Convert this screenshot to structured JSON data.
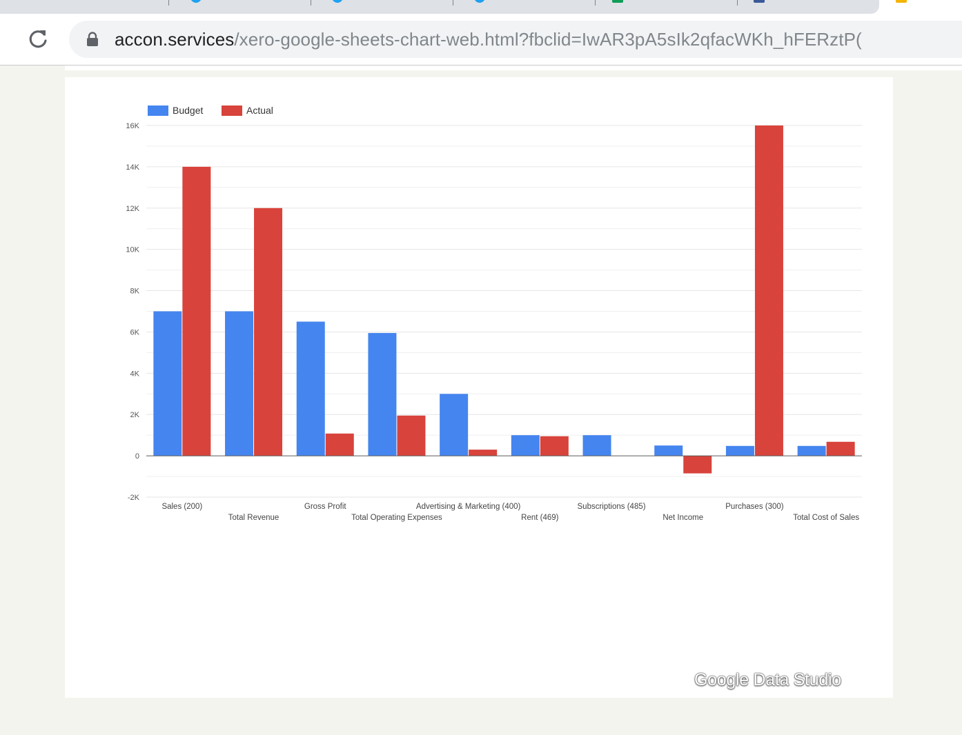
{
  "browser": {
    "url_host": "accon.services",
    "url_path": "/xero-google-sheets-chart-web.html?fbclid=IwAR3pA5sIk2qfacWKh_hFERztP("
  },
  "report": {
    "watermark": "Google Data Studio"
  },
  "colors": {
    "budget": "#4585ef",
    "actual": "#d8433b",
    "gridline": "#e6e6e6",
    "baseline": "#5a5a5a"
  },
  "chart_data": {
    "type": "bar",
    "legend_position": "top-left",
    "grid": true,
    "ylim": [
      -2000,
      16000
    ],
    "yticks": [
      {
        "value": 16000,
        "label": "16K"
      },
      {
        "value": 14000,
        "label": "14K"
      },
      {
        "value": 12000,
        "label": "12K"
      },
      {
        "value": 10000,
        "label": "10K"
      },
      {
        "value": 8000,
        "label": "8K"
      },
      {
        "value": 6000,
        "label": "6K"
      },
      {
        "value": 4000,
        "label": "4K"
      },
      {
        "value": 2000,
        "label": "2K"
      },
      {
        "value": 0,
        "label": "0"
      },
      {
        "value": -2000,
        "label": "-2K"
      }
    ],
    "categories": [
      "Sales (200)",
      "Total Revenue",
      "Gross Profit",
      "Total Operating Expenses",
      "Advertising & Marketing (400)",
      "Rent (469)",
      "Subscriptions (485)",
      "Net Income",
      "Purchases (300)",
      "Total Cost of Sales"
    ],
    "series": [
      {
        "name": "Budget",
        "color": "#4585ef",
        "values": [
          7000,
          7000,
          6500,
          5950,
          3000,
          1000,
          1000,
          500,
          480,
          480
        ]
      },
      {
        "name": "Actual",
        "color": "#d8433b",
        "values": [
          14000,
          12000,
          1080,
          1950,
          300,
          950,
          0,
          -850,
          16000,
          680
        ]
      }
    ]
  }
}
